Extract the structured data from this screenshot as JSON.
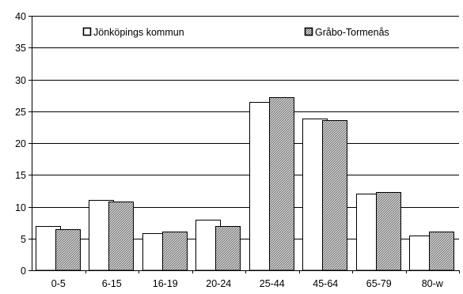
{
  "chart_data": {
    "type": "bar",
    "categories": [
      "0-5",
      "6-15",
      "16-19",
      "20-24",
      "25-44",
      "45-64",
      "65-79",
      "80-w"
    ],
    "series": [
      {
        "name": "Jönköpings kommun",
        "values": [
          7.0,
          11.0,
          5.8,
          8.0,
          26.4,
          23.8,
          12.1,
          5.5
        ]
      },
      {
        "name": "Gråbo-Tormenås",
        "values": [
          6.5,
          10.8,
          6.1,
          7.0,
          27.2,
          23.6,
          12.3,
          6.1
        ]
      }
    ],
    "ylim": [
      0,
      40
    ],
    "y_ticks": [
      "0",
      "5",
      "10",
      "15",
      "20",
      "25",
      "30",
      "35",
      "40"
    ],
    "grid": true,
    "legend_position": "top",
    "colors": {
      "series_1_fill": "#ffffff",
      "series_2_fill": "#a6a6a6",
      "bar_stroke": "#000000",
      "grid": "#000000"
    }
  }
}
